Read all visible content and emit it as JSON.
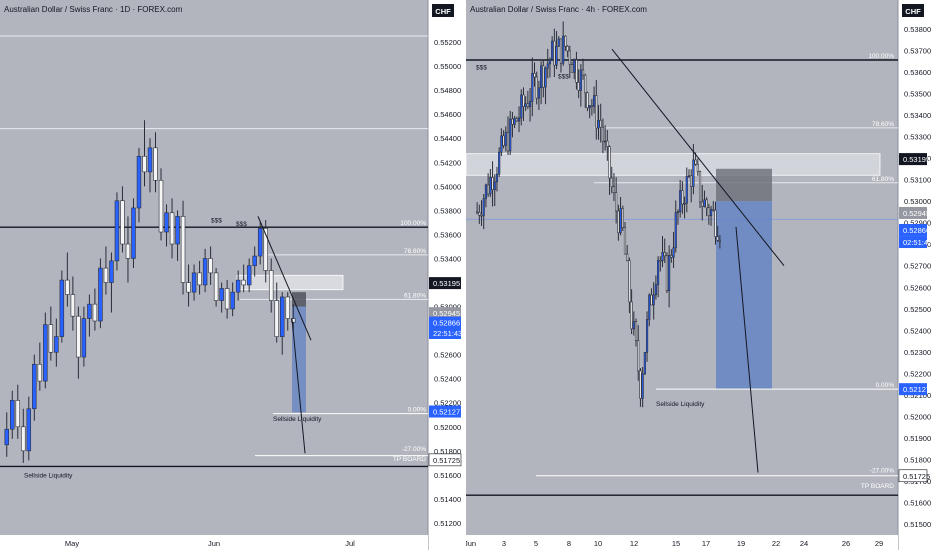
{
  "colors": {
    "background": "#b2b5be",
    "bull": "#2962ff",
    "bear": "#f5f5f5",
    "wick": "#2a2e39",
    "axis_bg": "#ffffff",
    "current_price_tag": "#2962ff",
    "black_tag": "#131722",
    "sell_box": "#5b7fc4"
  },
  "chart_data": [
    {
      "type": "candlestick",
      "title": "Australian Dollar / Swiss Franc · 1D · FOREX.com",
      "currency": "CHF",
      "ylim": [
        0.511,
        0.554
      ],
      "y_ticks": [
        "0.55200",
        "0.55000",
        "0.54800",
        "0.54600",
        "0.54400",
        "0.54200",
        "0.54000",
        "0.53800",
        "0.53600",
        "0.53400",
        "0.53000",
        "0.52800",
        "0.52600",
        "0.52400",
        "0.52200",
        "0.52000",
        "0.51800",
        "0.51600",
        "0.51400",
        "0.51200"
      ],
      "x_ticks": [
        "May",
        "Jun",
        "Jul"
      ],
      "price_tags": [
        {
          "label": "0.53195",
          "style": "black"
        },
        {
          "label": "0.52945",
          "style": "gray"
        },
        {
          "label": "0.52866",
          "style": "blue"
        },
        {
          "label": "22:51:43",
          "style": "blue"
        },
        {
          "label": "0.52127",
          "style": "blue"
        },
        {
          "label": "0.51725",
          "style": "plain"
        }
      ],
      "fib_labels": [
        "100.00%",
        "78.60%",
        "61.80%",
        "0.00%",
        "-27.00%",
        "TP BOARD"
      ],
      "annotations": [
        "$$$",
        "$$$",
        "Sellside Liquidity",
        "Sellside Liquidity",
        "$$$"
      ],
      "candles": [
        [
          0.5185,
          0.5212,
          0.5175,
          0.5198
        ],
        [
          0.5198,
          0.523,
          0.519,
          0.5222
        ],
        [
          0.5222,
          0.5235,
          0.519,
          0.52
        ],
        [
          0.52,
          0.5215,
          0.517,
          0.518
        ],
        [
          0.518,
          0.5225,
          0.5172,
          0.5215
        ],
        [
          0.5215,
          0.526,
          0.5205,
          0.5252
        ],
        [
          0.5252,
          0.527,
          0.523,
          0.5238
        ],
        [
          0.5238,
          0.5295,
          0.5232,
          0.5285
        ],
        [
          0.5285,
          0.53,
          0.5255,
          0.5262
        ],
        [
          0.5262,
          0.529,
          0.525,
          0.5275
        ],
        [
          0.5275,
          0.533,
          0.527,
          0.5322
        ],
        [
          0.5322,
          0.5345,
          0.53,
          0.531
        ],
        [
          0.531,
          0.5325,
          0.528,
          0.5292
        ],
        [
          0.5292,
          0.53,
          0.524,
          0.5258
        ],
        [
          0.5258,
          0.53,
          0.525,
          0.529
        ],
        [
          0.529,
          0.531,
          0.5275,
          0.5302
        ],
        [
          0.5302,
          0.5315,
          0.528,
          0.5288
        ],
        [
          0.5288,
          0.534,
          0.5282,
          0.5332
        ],
        [
          0.5332,
          0.535,
          0.531,
          0.532
        ],
        [
          0.532,
          0.5345,
          0.5295,
          0.5338
        ],
        [
          0.5338,
          0.5395,
          0.533,
          0.5388
        ],
        [
          0.5388,
          0.54,
          0.5345,
          0.5352
        ],
        [
          0.5352,
          0.5375,
          0.532,
          0.534
        ],
        [
          0.534,
          0.539,
          0.5332,
          0.5382
        ],
        [
          0.5382,
          0.5432,
          0.537,
          0.5425
        ],
        [
          0.5425,
          0.5455,
          0.54,
          0.5412
        ],
        [
          0.5412,
          0.544,
          0.5395,
          0.5432
        ],
        [
          0.5432,
          0.5445,
          0.5395,
          0.5405
        ],
        [
          0.5405,
          0.5415,
          0.5355,
          0.5362
        ],
        [
          0.5362,
          0.5385,
          0.535,
          0.5378
        ],
        [
          0.5378,
          0.539,
          0.534,
          0.5352
        ],
        [
          0.5352,
          0.538,
          0.5338,
          0.5375
        ],
        [
          0.5375,
          0.5388,
          0.531,
          0.532
        ],
        [
          0.532,
          0.5335,
          0.53,
          0.5312
        ],
        [
          0.5312,
          0.5335,
          0.5305,
          0.5328
        ],
        [
          0.5328,
          0.5338,
          0.531,
          0.5318
        ],
        [
          0.5318,
          0.5348,
          0.5312,
          0.534
        ],
        [
          0.534,
          0.535,
          0.5318,
          0.5328
        ],
        [
          0.5328,
          0.5332,
          0.53,
          0.5305
        ],
        [
          0.5305,
          0.532,
          0.5295,
          0.5315
        ],
        [
          0.5315,
          0.5322,
          0.529,
          0.5298
        ],
        [
          0.5298,
          0.532,
          0.5292,
          0.5312
        ],
        [
          0.5312,
          0.533,
          0.5305,
          0.5322
        ],
        [
          0.5322,
          0.5335,
          0.5312,
          0.5318
        ],
        [
          0.5318,
          0.534,
          0.5312,
          0.5334
        ],
        [
          0.5334,
          0.535,
          0.5325,
          0.5342
        ],
        [
          0.5342,
          0.537,
          0.5335,
          0.5365
        ],
        [
          0.5365,
          0.5372,
          0.532,
          0.533
        ],
        [
          0.533,
          0.534,
          0.5295,
          0.5305
        ],
        [
          0.5305,
          0.532,
          0.527,
          0.5275
        ],
        [
          0.5275,
          0.5312,
          0.526,
          0.5308
        ],
        [
          0.5308,
          0.5312,
          0.528,
          0.529
        ],
        [
          0.529,
          0.5302,
          0.528,
          0.5287
        ]
      ]
    },
    {
      "type": "candlestick",
      "title": "Australian Dollar / Swiss Franc · 4h · FOREX.com",
      "currency": "CHF",
      "ylim": [
        0.5145,
        0.5385
      ],
      "y_ticks": [
        "0.53800",
        "0.53700",
        "0.53600",
        "0.53500",
        "0.53400",
        "0.53300",
        "0.53200",
        "0.53100",
        "0.53000",
        "0.52900",
        "0.52800",
        "0.52700",
        "0.52600",
        "0.52500",
        "0.52400",
        "0.52300",
        "0.52200",
        "0.52100",
        "0.52000",
        "0.51900",
        "0.51800",
        "0.51700",
        "0.51600",
        "0.51500"
      ],
      "x_ticks": [
        "Jun",
        "3",
        "5",
        "8",
        "10",
        "12",
        "15",
        "17",
        "19",
        "22",
        "24",
        "26",
        "29"
      ],
      "price_tags": [
        {
          "label": "0.53195",
          "style": "black"
        },
        {
          "label": "0.52945",
          "style": "gray"
        },
        {
          "label": "0.52866",
          "style": "blue"
        },
        {
          "label": "02:51:42",
          "style": "blue"
        },
        {
          "label": "0.52127",
          "style": "blue"
        },
        {
          "label": "0.51725",
          "style": "plain"
        }
      ],
      "fib_labels": [
        "100.00%",
        "78.60%",
        "61.80%",
        "0.00%",
        "-27.00%",
        "TP BOARD"
      ],
      "candles": []
    }
  ]
}
